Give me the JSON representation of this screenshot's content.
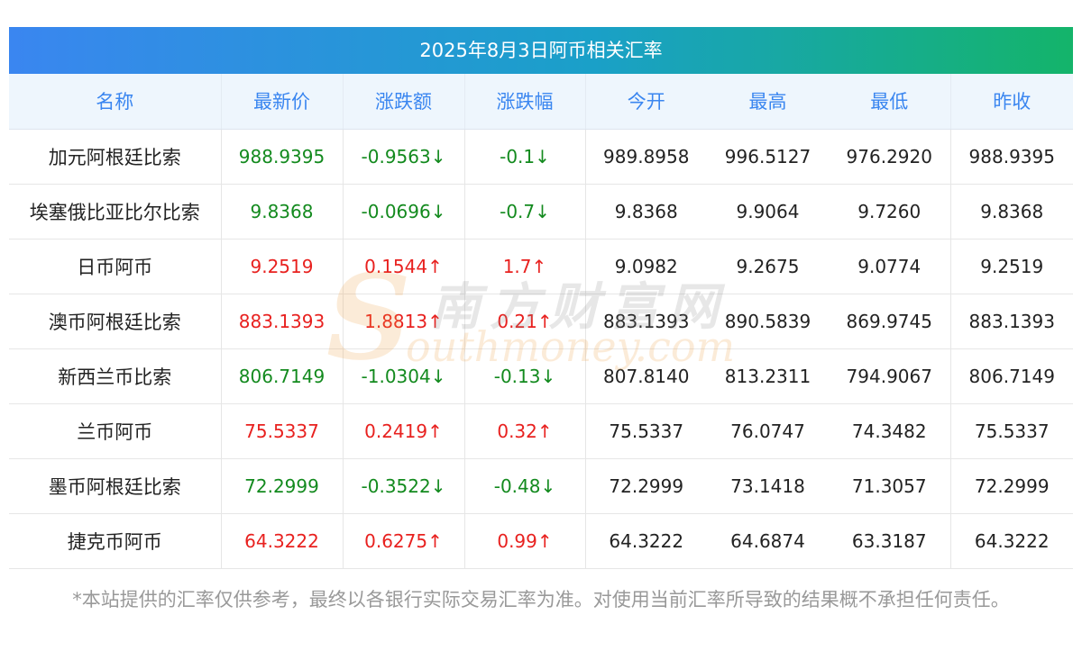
{
  "title": "2025年8月3日阿币相关汇率",
  "headers": [
    "名称",
    "最新价",
    "涨跌额",
    "涨跌幅",
    "今开",
    "最高",
    "最低",
    "昨收"
  ],
  "rows": [
    {
      "name": "加元阿根廷比索",
      "latest": "988.9395",
      "change": "-0.9563↓",
      "change_pct": "-0.1↓",
      "open": "989.8958",
      "high": "996.5127",
      "low": "976.2920",
      "prev_close": "988.9395",
      "direction": "down"
    },
    {
      "name": "埃塞俄比亚比尔比索",
      "latest": "9.8368",
      "change": "-0.0696↓",
      "change_pct": "-0.7↓",
      "open": "9.8368",
      "high": "9.9064",
      "low": "9.7260",
      "prev_close": "9.8368",
      "direction": "down"
    },
    {
      "name": "日币阿币",
      "latest": "9.2519",
      "change": "0.1544↑",
      "change_pct": "1.7↑",
      "open": "9.0982",
      "high": "9.2675",
      "low": "9.0774",
      "prev_close": "9.2519",
      "direction": "up"
    },
    {
      "name": "澳币阿根廷比索",
      "latest": "883.1393",
      "change": "1.8813↑",
      "change_pct": "0.21↑",
      "open": "883.1393",
      "high": "890.5839",
      "low": "869.9745",
      "prev_close": "883.1393",
      "direction": "up"
    },
    {
      "name": "新西兰币比索",
      "latest": "806.7149",
      "change": "-1.0304↓",
      "change_pct": "-0.13↓",
      "open": "807.8140",
      "high": "813.2311",
      "low": "794.9067",
      "prev_close": "806.7149",
      "direction": "down"
    },
    {
      "name": "兰币阿币",
      "latest": "75.5337",
      "change": "0.2419↑",
      "change_pct": "0.32↑",
      "open": "75.5337",
      "high": "76.0747",
      "low": "74.3482",
      "prev_close": "75.5337",
      "direction": "up"
    },
    {
      "name": "墨币阿根廷比索",
      "latest": "72.2999",
      "change": "-0.3522↓",
      "change_pct": "-0.48↓",
      "open": "72.2999",
      "high": "73.1418",
      "low": "71.3057",
      "prev_close": "72.2999",
      "direction": "down"
    },
    {
      "name": "捷克币阿币",
      "latest": "64.3222",
      "change": "0.6275↑",
      "change_pct": "0.99↑",
      "open": "64.3222",
      "high": "64.6874",
      "low": "63.3187",
      "prev_close": "64.3222",
      "direction": "up"
    }
  ],
  "watermark": {
    "logo_letter": "S",
    "cn": "南方财富网",
    "en": "outhmoney.com"
  },
  "disclaimer": "*本站提供的汇率仅供参考，最终以各银行实际交易汇率为准。对使用当前汇率所导致的结果概不承担任何责任。",
  "colors": {
    "up": "#e8211f",
    "down": "#138a1e",
    "header_text": "#3a86f0",
    "title_gradient": [
      "#3a86f0",
      "#1aa0c8",
      "#14b46a"
    ]
  }
}
